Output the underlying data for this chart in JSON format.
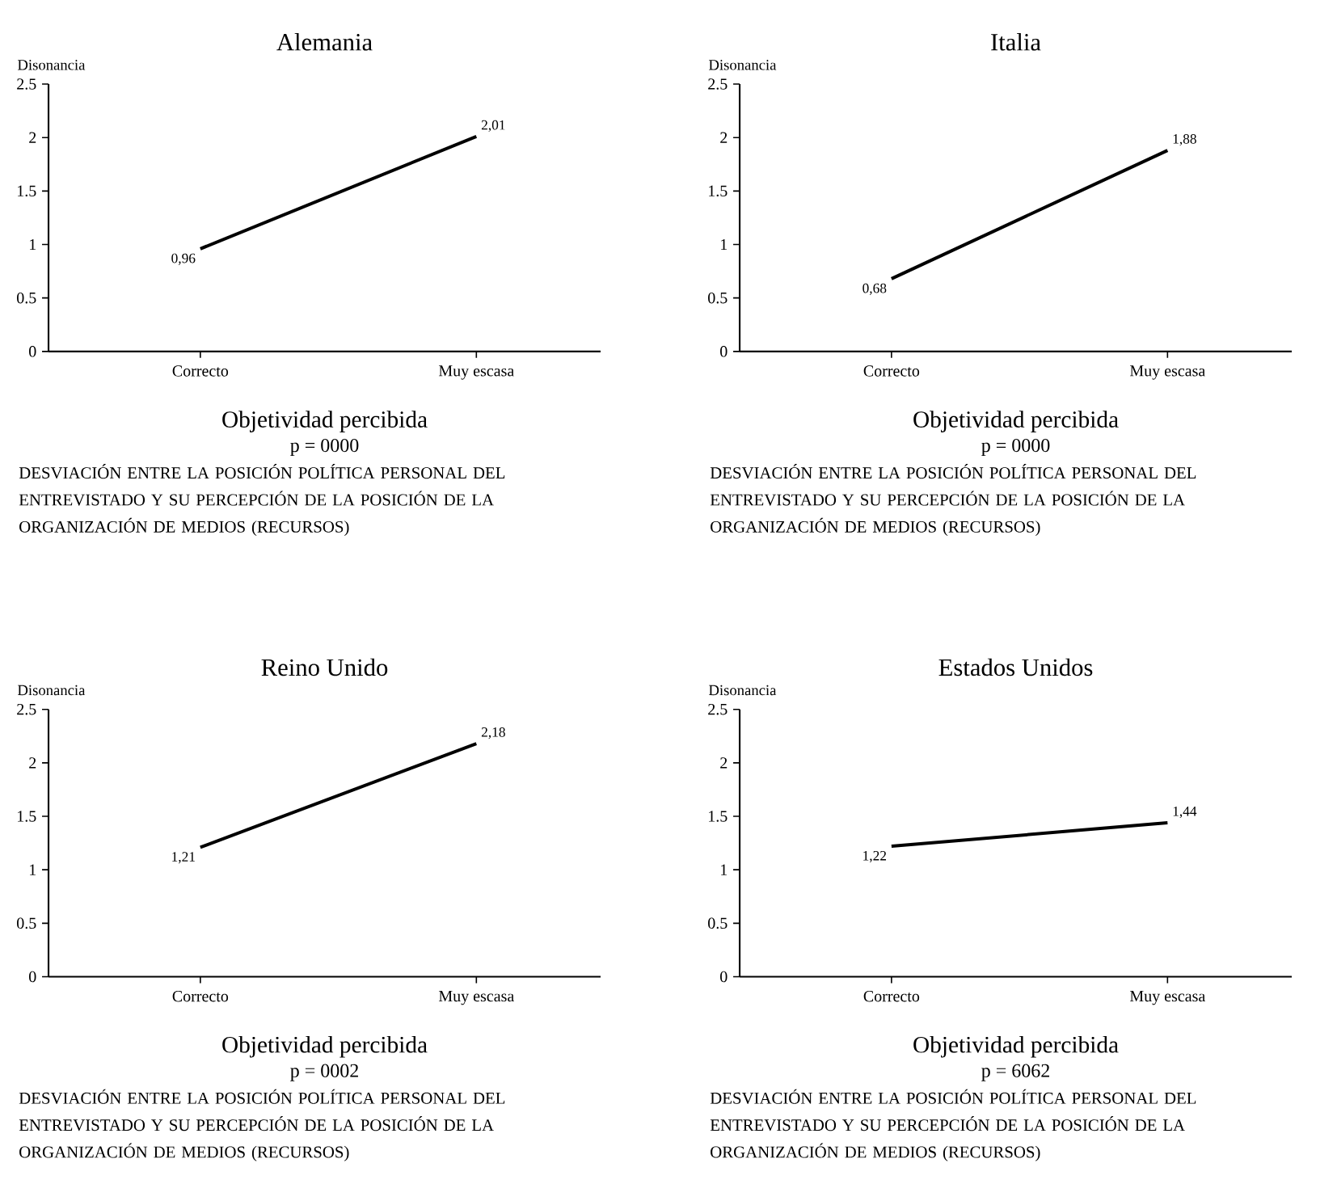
{
  "chart_data": [
    {
      "type": "line",
      "title": "Alemania",
      "ylabel": "Disonancia",
      "xlabel": "Objetividad percibida",
      "annotations": [
        "p = 0000",
        "DESVIACIÓN ENTRE LA POSICIÓN POLÍTICA PERSONAL DEL ENTREVISTADO Y SU PERCEPCIÓN DE LA POSICIÓN DE LA ORGANIZACIÓN DE MEDIOS (RECURSOS)"
      ],
      "categories": [
        "Correcto",
        "Muy escasa"
      ],
      "series": [
        {
          "color": "#000000",
          "values": [
            0.96,
            2.01
          ],
          "value_labels": [
            "0,96",
            "2,01"
          ]
        }
      ],
      "ylim": [
        0,
        2.5
      ],
      "yticks": [
        0,
        0.5,
        1,
        1.5,
        2,
        2.5
      ],
      "marker": "none"
    },
    {
      "type": "line",
      "title": "Italia",
      "ylabel": "Disonancia",
      "xlabel": "Objetividad percibida",
      "annotations": [
        "p = 0000",
        "DESVIACIÓN ENTRE LA POSICIÓN POLÍTICA PERSONAL DEL ENTREVISTADO Y SU PERCEPCIÓN DE LA POSICIÓN DE LA ORGANIZACIÓN DE MEDIOS (RECURSOS)"
      ],
      "categories": [
        "Correcto",
        "Muy escasa"
      ],
      "series": [
        {
          "color": "#000000",
          "values": [
            0.68,
            1.88
          ],
          "value_labels": [
            "0,68",
            "1,88"
          ]
        }
      ],
      "ylim": [
        0,
        2.5
      ],
      "yticks": [
        0,
        0.5,
        1,
        1.5,
        2,
        2.5
      ],
      "marker": "none"
    },
    {
      "type": "line",
      "title": "Reino Unido",
      "ylabel": "Disonancia",
      "xlabel": "Objetividad percibida",
      "annotations": [
        "p = 0002",
        "DESVIACIÓN ENTRE LA POSICIÓN POLÍTICA PERSONAL DEL ENTREVISTADO Y SU PERCEPCIÓN DE LA POSICIÓN DE LA ORGANIZACIÓN DE MEDIOS (RECURSOS)"
      ],
      "categories": [
        "Correcto",
        "Muy escasa"
      ],
      "series": [
        {
          "color": "#000000",
          "values": [
            1.21,
            2.18
          ],
          "value_labels": [
            "1,21",
            "2,18"
          ]
        }
      ],
      "ylim": [
        0,
        2.5
      ],
      "yticks": [
        0,
        0.5,
        1,
        1.5,
        2,
        2.5
      ],
      "marker": "none"
    },
    {
      "type": "line",
      "title": "Estados Unidos",
      "ylabel": "Disonancia",
      "xlabel": "Objetividad percibida",
      "annotations": [
        "p = 6062",
        "DESVIACIÓN ENTRE LA POSICIÓN POLÍTICA PERSONAL DEL ENTREVISTADO Y SU PERCEPCIÓN DE LA POSICIÓN DE LA ORGANIZACIÓN DE MEDIOS (RECURSOS)"
      ],
      "categories": [
        "Correcto",
        "Muy escasa"
      ],
      "series": [
        {
          "color": "#000000",
          "values": [
            1.22,
            1.44
          ],
          "value_labels": [
            "1,22",
            "1,44"
          ]
        }
      ],
      "ylim": [
        0,
        2.5
      ],
      "yticks": [
        0,
        0.5,
        1,
        1.5,
        2,
        2.5
      ],
      "marker": "none"
    }
  ]
}
